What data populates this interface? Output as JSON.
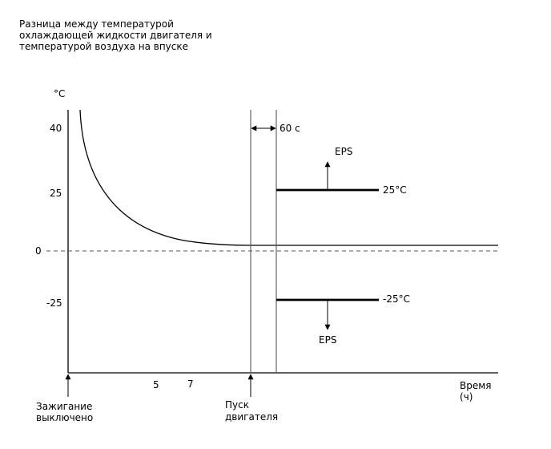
{
  "title_lines": [
    "Разница между температурой",
    "охлаждающей жидкости двигателя и",
    "температурой воздуха на впуске"
  ],
  "y_unit": "°C",
  "y_ticks": [
    "40",
    "25",
    "0",
    "-25"
  ],
  "x_ticks": [
    "5",
    "7"
  ],
  "x_axis_label": [
    "Время",
    "(ч)"
  ],
  "events": {
    "ignition_off": [
      "Зажигание",
      "выключено"
    ],
    "engine_start": [
      "Пуск",
      "двигателя"
    ]
  },
  "interval_label": "60 с",
  "thresholds": {
    "upper": {
      "label": "25°C",
      "value": 25,
      "arrow_label": "EPS"
    },
    "lower": {
      "label": "-25°C",
      "value": -25,
      "arrow_label": "EPS"
    }
  },
  "colors": {
    "ink": "#000000",
    "background": "#ffffff"
  }
}
